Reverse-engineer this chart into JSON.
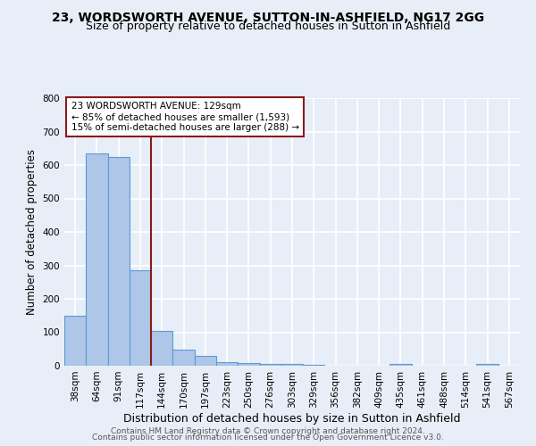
{
  "title_line1": "23, WORDSWORTH AVENUE, SUTTON-IN-ASHFIELD, NG17 2GG",
  "title_line2": "Size of property relative to detached houses in Sutton in Ashfield",
  "xlabel": "Distribution of detached houses by size in Sutton in Ashfield",
  "ylabel": "Number of detached properties",
  "footer_line1": "Contains HM Land Registry data © Crown copyright and database right 2024.",
  "footer_line2": "Contains public sector information licensed under the Open Government Licence v3.0.",
  "bar_labels": [
    "38sqm",
    "64sqm",
    "91sqm",
    "117sqm",
    "144sqm",
    "170sqm",
    "197sqm",
    "223sqm",
    "250sqm",
    "276sqm",
    "303sqm",
    "329sqm",
    "356sqm",
    "382sqm",
    "409sqm",
    "435sqm",
    "461sqm",
    "488sqm",
    "514sqm",
    "541sqm",
    "567sqm"
  ],
  "bar_values": [
    150,
    635,
    625,
    285,
    103,
    47,
    30,
    12,
    8,
    5,
    5,
    3,
    0,
    0,
    0,
    5,
    0,
    0,
    0,
    5,
    0
  ],
  "bar_color": "#aec6e8",
  "bar_edgecolor": "#5b9bd5",
  "bar_linewidth": 0.8,
  "vline_x": 3.5,
  "vline_color": "#8b1a1a",
  "vline_linewidth": 1.5,
  "annotation_text": "23 WORDSWORTH AVENUE: 129sqm\n← 85% of detached houses are smaller (1,593)\n15% of semi-detached houses are larger (288) →",
  "annotation_box_edgecolor": "#8b1a1a",
  "annotation_box_facecolor": "white",
  "ylim": [
    0,
    800
  ],
  "yticks": [
    0,
    100,
    200,
    300,
    400,
    500,
    600,
    700,
    800
  ],
  "background_color": "#e8eef7",
  "grid_color": "white",
  "title_fontsize": 10,
  "subtitle_fontsize": 9,
  "xlabel_fontsize": 9,
  "ylabel_fontsize": 8.5,
  "tick_fontsize": 7.5,
  "footer_fontsize": 6.5,
  "annotation_fontsize": 7.5
}
